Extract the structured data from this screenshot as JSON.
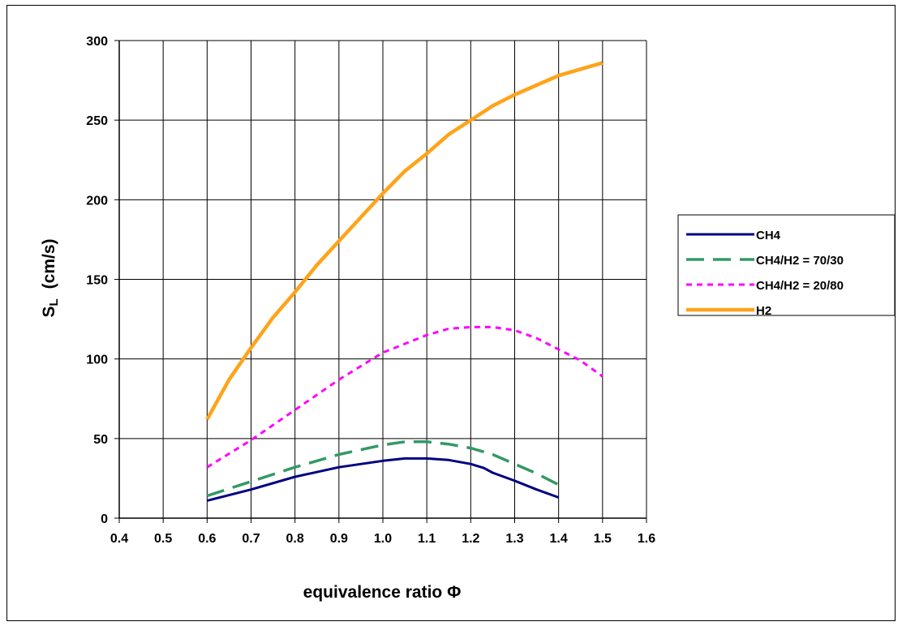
{
  "chart_data": {
    "type": "line",
    "xlabel": "equivalence ratio Φ",
    "ylabel_main": "S",
    "ylabel_sub": "L",
    "ylabel_unit": "(cm/s)",
    "xlim": [
      0.4,
      1.6
    ],
    "ylim": [
      0,
      300
    ],
    "xticks": [
      "0.4",
      "0.5",
      "0.6",
      "0.7",
      "0.8",
      "0.9",
      "1.0",
      "1.1",
      "1.2",
      "1.3",
      "1.4",
      "1.5",
      "1.6"
    ],
    "yticks": [
      "0",
      "50",
      "100",
      "150",
      "200",
      "250",
      "300"
    ],
    "grid": true,
    "legend_position": "right",
    "series": [
      {
        "name": "CH4",
        "color": "#000080",
        "style": "solid",
        "x": [
          0.6,
          0.7,
          0.8,
          0.9,
          1.0,
          1.05,
          1.1,
          1.15,
          1.2,
          1.23,
          1.25,
          1.3,
          1.35,
          1.4
        ],
        "y": [
          11,
          18,
          26,
          32,
          36,
          37.5,
          37.5,
          36.5,
          34,
          31.5,
          28.5,
          23.5,
          18,
          13
        ]
      },
      {
        "name": "CH4/H2 = 70/30",
        "color": "#339966",
        "style": "longdash",
        "x": [
          0.6,
          0.7,
          0.8,
          0.9,
          1.0,
          1.05,
          1.1,
          1.15,
          1.2,
          1.25,
          1.3,
          1.35,
          1.4
        ],
        "y": [
          14,
          23,
          32,
          40,
          46,
          48,
          48,
          46.5,
          44,
          40,
          34,
          28,
          21
        ]
      },
      {
        "name": "CH4/H2 = 20/80",
        "color": "#FF00FF",
        "style": "shortdash",
        "x": [
          0.6,
          0.7,
          0.8,
          0.9,
          1.0,
          1.1,
          1.15,
          1.2,
          1.25,
          1.3,
          1.35,
          1.4,
          1.45,
          1.5
        ],
        "y": [
          32,
          49,
          68,
          87,
          104,
          115,
          119,
          120,
          120,
          118,
          113,
          106,
          99,
          89
        ]
      },
      {
        "name": "H2",
        "color": "#FFA31A",
        "style": "thick",
        "x": [
          0.6,
          0.65,
          0.7,
          0.75,
          0.8,
          0.85,
          0.9,
          0.95,
          1.0,
          1.05,
          1.1,
          1.15,
          1.2,
          1.25,
          1.3,
          1.35,
          1.4,
          1.45,
          1.5
        ],
        "y": [
          62,
          87,
          107,
          126,
          142,
          159,
          174,
          189,
          204,
          218,
          229,
          241,
          250,
          259,
          266,
          272,
          278,
          282,
          286
        ]
      }
    ]
  }
}
